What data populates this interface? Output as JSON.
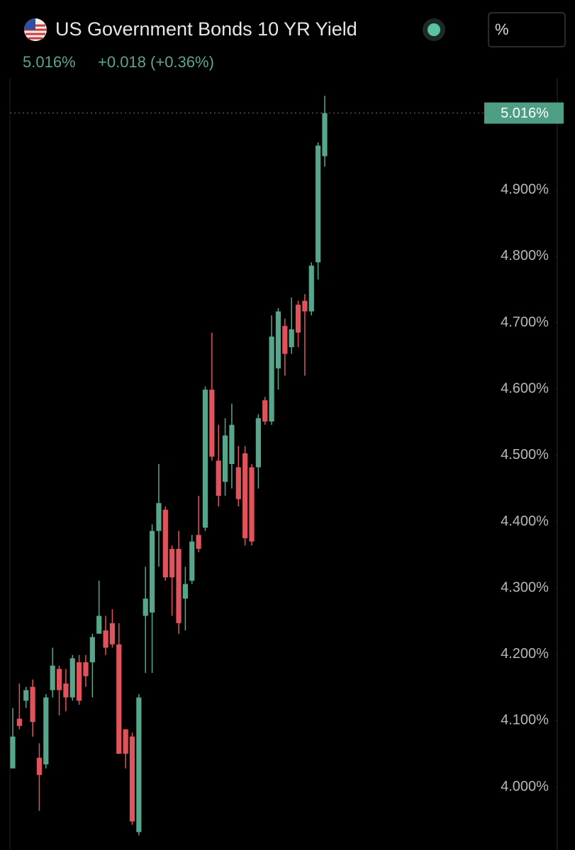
{
  "chart_data": {
    "type": "candlestick",
    "title": "US Government Bonds 10 YR Yield",
    "last": {
      "value": 5.016,
      "label": "5.016%"
    },
    "change": "+0.018 (+0.36%)",
    "unit_selector": "%",
    "up_color": "#55a68b",
    "down_color": "#e0535a",
    "ylim": [
      3.905,
      5.069
    ],
    "yticks": [
      {
        "value": 4.0,
        "label": "4.000%"
      },
      {
        "value": 4.1,
        "label": "4.100%"
      },
      {
        "value": 4.2,
        "label": "4.200%"
      },
      {
        "value": 4.3,
        "label": "4.300%"
      },
      {
        "value": 4.4,
        "label": "4.400%"
      },
      {
        "value": 4.5,
        "label": "4.500%"
      },
      {
        "value": 4.6,
        "label": "4.600%"
      },
      {
        "value": 4.7,
        "label": "4.700%"
      },
      {
        "value": 4.8,
        "label": "4.800%"
      },
      {
        "value": 4.9,
        "label": "4.900%"
      }
    ],
    "open": [
      4.028,
      4.103,
      4.13,
      4.151,
      4.044,
      4.034,
      4.146,
      4.178,
      4.156,
      4.135,
      4.188,
      4.188,
      4.188,
      4.231,
      4.236,
      4.247,
      4.215,
      4.087,
      4.076,
      3.932,
      4.258,
      4.263,
      4.386,
      4.418,
      4.359,
      4.359,
      4.284,
      4.311,
      4.38,
      4.391,
      4.599,
      4.492,
      4.46,
      4.487,
      4.482,
      4.503,
      4.482,
      4.482,
      4.583,
      4.551,
      4.631,
      4.695,
      4.663,
      4.727,
      4.733,
      4.717,
      4.791,
      4.951
    ],
    "high": [
      4.119,
      4.156,
      4.151,
      4.162,
      4.066,
      4.14,
      4.21,
      4.183,
      4.178,
      4.199,
      4.199,
      4.199,
      4.231,
      4.311,
      4.258,
      4.268,
      4.247,
      4.087,
      4.082,
      4.14,
      4.332,
      4.396,
      4.487,
      4.423,
      4.364,
      4.386,
      4.332,
      4.38,
      4.439,
      4.604,
      4.685,
      4.546,
      4.556,
      4.578,
      4.514,
      4.514,
      4.487,
      4.562,
      4.588,
      4.711,
      4.722,
      4.706,
      4.738,
      4.733,
      4.743,
      4.791,
      4.972,
      5.042
    ],
    "low": [
      4.028,
      4.087,
      4.119,
      4.076,
      3.964,
      4.028,
      4.135,
      4.108,
      4.114,
      4.13,
      4.124,
      4.151,
      4.135,
      4.231,
      4.199,
      4.21,
      4.05,
      4.028,
      3.943,
      3.927,
      4.172,
      4.172,
      4.332,
      4.311,
      4.258,
      4.231,
      4.236,
      4.306,
      4.354,
      4.386,
      4.492,
      4.423,
      4.439,
      4.45,
      4.423,
      4.364,
      4.364,
      4.45,
      4.546,
      4.546,
      4.599,
      4.62,
      4.653,
      4.663,
      4.62,
      4.711,
      4.765,
      4.935
    ],
    "close": [
      4.076,
      4.092,
      4.146,
      4.098,
      4.018,
      4.135,
      4.183,
      4.146,
      4.135,
      4.194,
      4.13,
      4.167,
      4.226,
      4.258,
      4.21,
      4.215,
      4.05,
      4.05,
      3.948,
      4.135,
      4.284,
      4.386,
      4.428,
      4.316,
      4.316,
      4.247,
      4.306,
      4.37,
      4.359,
      4.599,
      4.498,
      4.439,
      4.53,
      4.546,
      4.434,
      4.375,
      4.37,
      4.556,
      4.551,
      4.679,
      4.717,
      4.653,
      4.69,
      4.685,
      4.717,
      4.786,
      4.967,
      5.016
    ]
  }
}
